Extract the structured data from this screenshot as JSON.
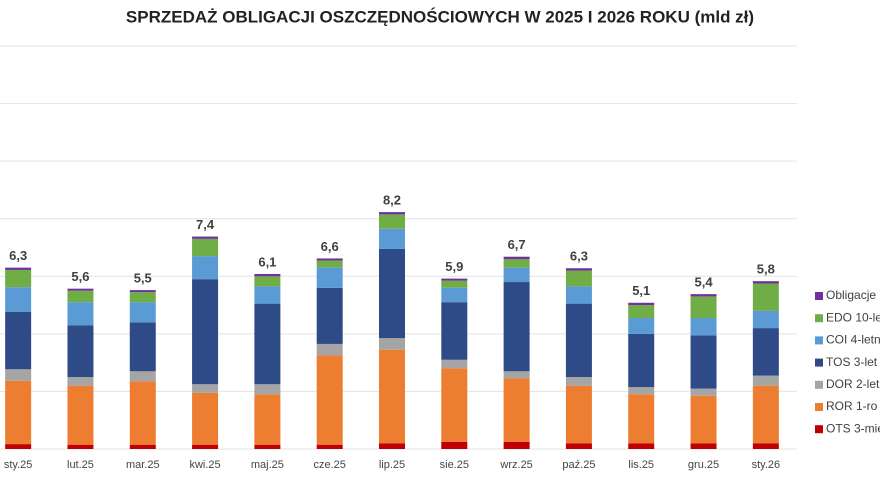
{
  "chart_data": {
    "type": "stacked_bar",
    "title": "SPRZEDAŻ OBLIGACJI OSZCZĘDNOŚCIOWYCH W 2025 I 2026 ROKU (mld zł)",
    "categories": [
      "sty.25",
      "lut.25",
      "mar.25",
      "kwi.25",
      "maj.25",
      "cze.25",
      "lip.25",
      "sie.25",
      "wrz.25",
      "paź.25",
      "lis.25",
      "gru.25",
      "sty.26"
    ],
    "series": [
      {
        "name": "OTS 3-mie",
        "color": "#c00000",
        "values": [
          0.17,
          0.15,
          0.15,
          0.15,
          0.15,
          0.15,
          0.2,
          0.25,
          0.25,
          0.2,
          0.2,
          0.2,
          0.2
        ]
      },
      {
        "name": "ROR 1-ro",
        "color": "#ed7d31",
        "values": [
          2.2,
          2.05,
          2.2,
          1.8,
          1.75,
          3.1,
          3.25,
          2.55,
          2.2,
          2.0,
          1.7,
          1.65,
          2.0
        ]
      },
      {
        "name": "DOR 2-let",
        "color": "#a5a5a5",
        "values": [
          0.4,
          0.3,
          0.35,
          0.3,
          0.35,
          0.4,
          0.4,
          0.3,
          0.25,
          0.3,
          0.25,
          0.25,
          0.35
        ]
      },
      {
        "name": "TOS 3-let",
        "color": "#2e4a87",
        "values": [
          2.0,
          1.8,
          1.7,
          3.65,
          2.8,
          1.95,
          3.1,
          2.0,
          3.1,
          2.55,
          1.85,
          1.85,
          1.65
        ]
      },
      {
        "name": "COI 4-letn",
        "color": "#5b9bd5",
        "values": [
          0.85,
          0.8,
          0.7,
          0.8,
          0.6,
          0.7,
          0.7,
          0.5,
          0.5,
          0.6,
          0.55,
          0.6,
          0.6
        ]
      },
      {
        "name": "EDO 10-le",
        "color": "#70ad47",
        "values": [
          0.6,
          0.4,
          0.35,
          0.6,
          0.35,
          0.25,
          0.5,
          0.25,
          0.3,
          0.55,
          0.45,
          0.75,
          0.95
        ]
      },
      {
        "name": "Obligacje",
        "color": "#7030a0",
        "values": [
          0.08,
          0.07,
          0.07,
          0.08,
          0.08,
          0.07,
          0.08,
          0.07,
          0.08,
          0.08,
          0.08,
          0.08,
          0.08
        ]
      }
    ],
    "totals": [
      6.3,
      5.6,
      5.5,
      7.4,
      6.1,
      6.6,
      8.2,
      5.9,
      6.7,
      6.3,
      5.1,
      5.4,
      5.8
    ],
    "total_labels": [
      "6,3",
      "5,6",
      "5,5",
      "7,4",
      "6,1",
      "6,6",
      "8,2",
      "5,9",
      "6,7",
      "6,3",
      "5,1",
      "5,4",
      "5,8"
    ],
    "ylim": [
      0,
      14
    ],
    "yticks": [
      0,
      2,
      4,
      6,
      8,
      10,
      12,
      14
    ],
    "grid": true,
    "legend": "right"
  }
}
